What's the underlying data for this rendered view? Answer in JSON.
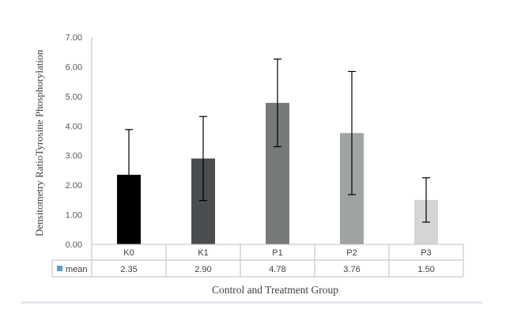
{
  "chart_data": {
    "type": "bar",
    "title": "",
    "xlabel": "Control and Treatment Group",
    "ylabel": "Densitometry RatioTyrosine Phosphorylation",
    "ylim": [
      0,
      7
    ],
    "yticks": [
      "0.00",
      "1.00",
      "2.00",
      "3.00",
      "4.00",
      "5.00",
      "6.00",
      "7.00"
    ],
    "grid": false,
    "categories": [
      "K0",
      "K1",
      "P1",
      "P2",
      "P3"
    ],
    "series": [
      {
        "name": "mean",
        "values": [
          2.35,
          2.9,
          4.78,
          3.76,
          1.5
        ],
        "value_labels": [
          "2.35",
          "2.90",
          "4.78",
          "3.76",
          "1.50"
        ],
        "error": [
          1.53,
          1.42,
          1.48,
          2.08,
          0.75
        ],
        "colors": [
          "#000000",
          "#4a4d4f",
          "#757979",
          "#a0a3a3",
          "#d4d6d6"
        ]
      }
    ],
    "legend_marker_color": "#5b9bd5",
    "data_table": true
  }
}
